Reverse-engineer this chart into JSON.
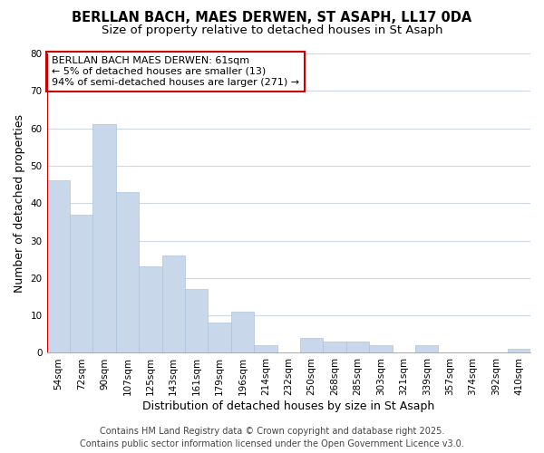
{
  "title_line1": "BERLLAN BACH, MAES DERWEN, ST ASAPH, LL17 0DA",
  "title_line2": "Size of property relative to detached houses in St Asaph",
  "xlabel": "Distribution of detached houses by size in St Asaph",
  "ylabel": "Number of detached properties",
  "categories": [
    "54sqm",
    "72sqm",
    "90sqm",
    "107sqm",
    "125sqm",
    "143sqm",
    "161sqm",
    "179sqm",
    "196sqm",
    "214sqm",
    "232sqm",
    "250sqm",
    "268sqm",
    "285sqm",
    "303sqm",
    "321sqm",
    "339sqm",
    "357sqm",
    "374sqm",
    "392sqm",
    "410sqm"
  ],
  "values": [
    46,
    37,
    61,
    43,
    23,
    26,
    17,
    8,
    11,
    2,
    0,
    4,
    3,
    3,
    2,
    0,
    2,
    0,
    0,
    0,
    1
  ],
  "bar_color": "#c8d8ea",
  "bar_edgecolor": "#adc4dc",
  "marker_line_color": "#cc0000",
  "annotation_text": "BERLLAN BACH MAES DERWEN: 61sqm\n← 5% of detached houses are smaller (13)\n94% of semi-detached houses are larger (271) →",
  "annotation_box_color": "white",
  "annotation_edge_color": "#cc0000",
  "ylim": [
    0,
    80
  ],
  "yticks": [
    0,
    10,
    20,
    30,
    40,
    50,
    60,
    70,
    80
  ],
  "grid_color": "#d0d8e4",
  "footer_line1": "Contains HM Land Registry data © Crown copyright and database right 2025.",
  "footer_line2": "Contains public sector information licensed under the Open Government Licence v3.0.",
  "background_color": "#ffffff",
  "title_fontsize": 10.5,
  "subtitle_fontsize": 9.5,
  "tick_fontsize": 7.5,
  "label_fontsize": 9,
  "annotation_fontsize": 8,
  "footer_fontsize": 7
}
